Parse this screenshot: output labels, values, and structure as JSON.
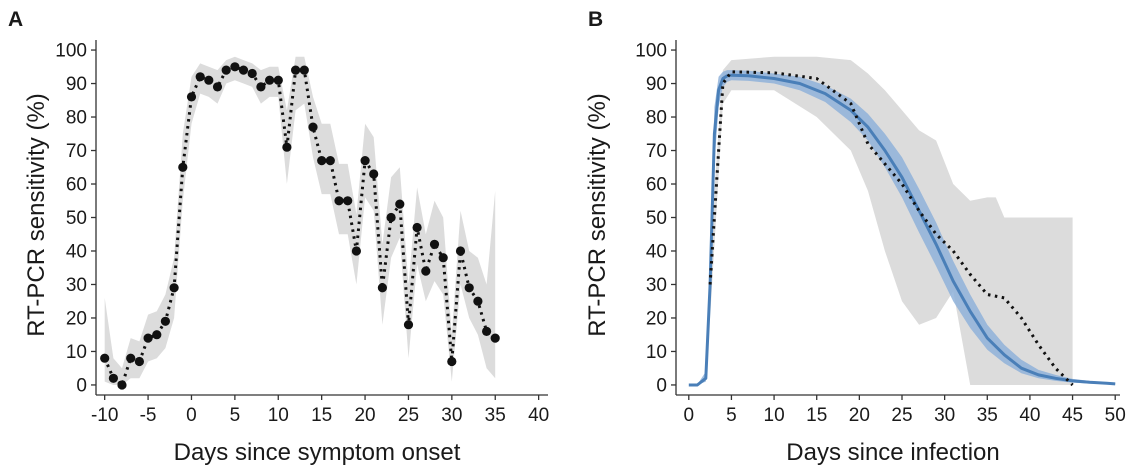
{
  "chart_data": [
    {
      "panel": "A",
      "type": "scatter",
      "xlabel": "Days since symptom onset",
      "ylabel": "RT-PCR sensitivity (%)",
      "xlim": [
        -11,
        42
      ],
      "ylim": [
        -3,
        103
      ],
      "xticks": [
        -10,
        -5,
        0,
        5,
        10,
        15,
        20,
        25,
        30,
        35,
        40
      ],
      "yticks": [
        0,
        10,
        20,
        30,
        40,
        50,
        60,
        70,
        80,
        90,
        100
      ],
      "grid": false,
      "series": [
        {
          "marker": "point",
          "line_style": "dotted",
          "x": [
            -10,
            -9,
            -8,
            -7,
            -6,
            -5,
            -4,
            -3,
            -2,
            -1,
            0,
            1,
            2,
            3,
            4,
            5,
            6,
            7,
            8,
            9,
            10,
            11,
            12,
            13,
            14,
            15,
            16,
            17,
            18,
            19,
            20,
            21,
            22,
            23,
            24,
            25,
            26,
            27,
            28,
            29,
            30,
            31,
            32,
            33,
            34,
            35
          ],
          "y": [
            8,
            2,
            0,
            8,
            7,
            14,
            15,
            19,
            29,
            65,
            86,
            92,
            91,
            89,
            94,
            95,
            94,
            93,
            89,
            91,
            91,
            71,
            94,
            94,
            77,
            67,
            67,
            55,
            55,
            40,
            67,
            63,
            29,
            50,
            54,
            18,
            47,
            34,
            42,
            38,
            7,
            40,
            29,
            25,
            16,
            14
          ]
        }
      ],
      "band": {
        "x": [
          -10,
          -9,
          -8,
          -7,
          -6,
          -5,
          -4,
          -3,
          -2,
          -1,
          0,
          1,
          2,
          3,
          4,
          5,
          6,
          7,
          8,
          9,
          10,
          11,
          12,
          13,
          14,
          15,
          16,
          17,
          18,
          19,
          20,
          21,
          22,
          23,
          24,
          25,
          26,
          27,
          28,
          29,
          30,
          31,
          32,
          33,
          34,
          35
        ],
        "lower": [
          1,
          0,
          0,
          2,
          2,
          7,
          8,
          11,
          20,
          55,
          78,
          87,
          86,
          84,
          90,
          91,
          90,
          89,
          84,
          86,
          86,
          60,
          82,
          84,
          68,
          57,
          57,
          45,
          45,
          30,
          56,
          52,
          18,
          38,
          44,
          8,
          36,
          25,
          31,
          27,
          1,
          30,
          20,
          15,
          5,
          2
        ],
        "upper": [
          26,
          8,
          5,
          14,
          13,
          21,
          22,
          27,
          38,
          75,
          92,
          96,
          95,
          94,
          97,
          98,
          97,
          96,
          94,
          95,
          95,
          82,
          98,
          98,
          86,
          78,
          78,
          66,
          66,
          51,
          78,
          74,
          42,
          62,
          65,
          30,
          59,
          45,
          55,
          50,
          15,
          52,
          40,
          38,
          30,
          58
        ]
      }
    },
    {
      "panel": "B",
      "type": "line",
      "xlabel": "Days since infection",
      "ylabel": "RT-PCR sensitivity (%)",
      "xlim": [
        -1.5,
        51.5
      ],
      "ylim": [
        -3,
        103
      ],
      "xticks": [
        0,
        5,
        10,
        15,
        20,
        25,
        30,
        35,
        40,
        45,
        50
      ],
      "yticks": [
        0,
        10,
        20,
        30,
        40,
        50,
        60,
        70,
        80,
        90,
        100
      ],
      "grid": false,
      "colors": {
        "model": "#4a7fb8",
        "ci": "#8fb2d9",
        "band": "#dcdcdc",
        "empirical": "#111111"
      },
      "series": [
        {
          "style": "solid",
          "x": [
            0,
            1,
            2,
            2.5,
            3,
            3.5,
            4,
            4.5,
            5,
            7,
            10,
            13,
            16,
            19,
            21,
            23,
            25,
            27,
            29,
            31,
            33,
            35,
            37,
            39,
            41,
            43,
            45,
            47,
            49,
            50
          ],
          "y": [
            0,
            0,
            2,
            30,
            75,
            88,
            91.5,
            92.3,
            92.5,
            92.3,
            91.5,
            90,
            87,
            82,
            77,
            70,
            62,
            52,
            42,
            31,
            22,
            14,
            9,
            5,
            3,
            2,
            1.2,
            0.8,
            0.5,
            0.3
          ],
          "ci_lower": [
            0,
            0,
            1,
            22,
            66,
            83,
            89,
            90.5,
            91,
            90.8,
            90,
            88,
            84.5,
            78.5,
            73,
            65,
            56,
            45.5,
            35.5,
            25,
            17,
            10.5,
            6.5,
            3.5,
            2,
            1.2,
            0.7,
            0.4,
            0.2,
            0.1
          ],
          "ci_upper": [
            0,
            0.1,
            4,
            40,
            83,
            92,
            93.5,
            94,
            94,
            93.8,
            93,
            92,
            89.5,
            85.5,
            81,
            75,
            68,
            58.5,
            48.5,
            37,
            27,
            18,
            12,
            7.5,
            4.5,
            3,
            1.8,
            1.2,
            0.8,
            0.6
          ]
        },
        {
          "style": "dotted",
          "x": [
            2.5,
            4,
            5,
            10,
            15,
            19,
            21,
            23,
            25,
            27,
            29,
            31,
            33,
            35,
            37,
            39,
            41,
            43,
            45
          ],
          "y": [
            30,
            90,
            93.5,
            93.2,
            91.5,
            84,
            72,
            66,
            60,
            52,
            45,
            40,
            33,
            27,
            26,
            20,
            12,
            5,
            0
          ]
        }
      ],
      "band": {
        "x": [
          2.5,
          4,
          5,
          10,
          15,
          19,
          21,
          23,
          25,
          27,
          29,
          31,
          33,
          35,
          36,
          37,
          39,
          41,
          43,
          45
        ],
        "lower": [
          20,
          84,
          88,
          88,
          80,
          70,
          58,
          40,
          25,
          18,
          20,
          28,
          0,
          0,
          0,
          0,
          0,
          0,
          0,
          0
        ],
        "upper": [
          40,
          94,
          97,
          98,
          98,
          97,
          93,
          88,
          82,
          76,
          73,
          60,
          55,
          56,
          56,
          50,
          50,
          50,
          50,
          50
        ]
      }
    }
  ]
}
